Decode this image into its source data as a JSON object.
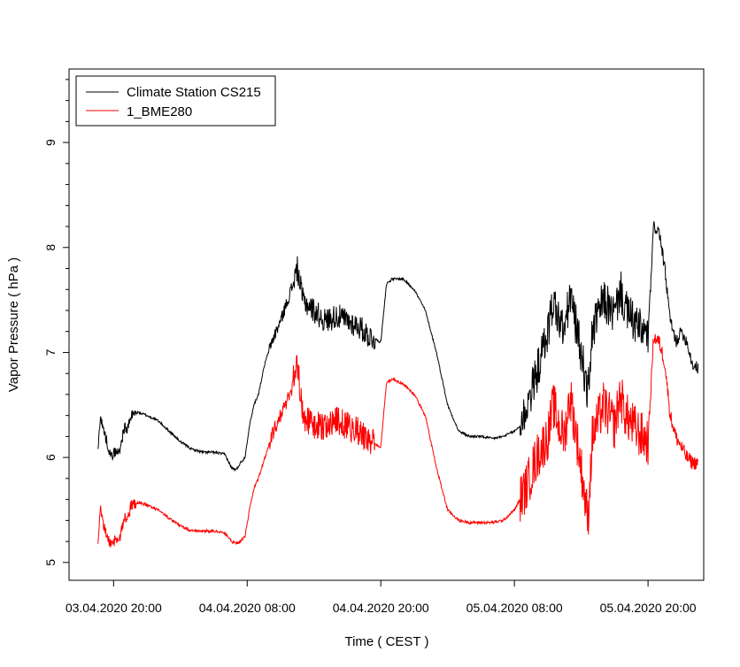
{
  "chart_data": {
    "type": "line",
    "xlabel": "Time ( CEST )",
    "ylabel": "Vapor Pressure ( hPa )",
    "x_ticks": [
      "03.04.2020 20:00",
      "04.04.2020 08:00",
      "04.04.2020 20:00",
      "05.04.2020 08:00",
      "05.04.2020 20:00"
    ],
    "x_tick_hours": [
      0,
      12,
      24,
      36,
      48
    ],
    "x_unit": "hours since 03.04.2020 20:00",
    "xlim": [
      -4,
      53
    ],
    "y_ticks": [
      "5",
      "6",
      "7",
      "8",
      "9"
    ],
    "y_tick_values": [
      5,
      6,
      7,
      8,
      9
    ],
    "ylim": [
      4.83,
      9.7
    ],
    "y_minor_step": 0.2,
    "legend_position": "top-left",
    "series": [
      {
        "name": "Climate Station CS215",
        "color": "#000000",
        "x": [
          -1.4,
          -1.2,
          -1.0,
          -0.6,
          -0.2,
          0.0,
          0.5,
          1.0,
          1.2,
          1.6,
          2.2,
          3.0,
          4.0,
          5.0,
          6.0,
          7.0,
          8.0,
          9.0,
          10.0,
          10.6,
          11.0,
          11.4,
          11.8,
          12.2,
          12.6,
          13.0,
          13.6,
          14.2,
          15.0,
          15.8,
          16.5,
          17.0,
          17.5,
          18.0,
          18.5,
          19.0,
          20.0,
          21.0,
          22.0,
          23.0,
          24.0,
          24.5,
          25.0,
          26.0,
          27.0,
          28.0,
          29.0,
          30.0,
          31.0,
          32.0,
          33.0,
          34.0,
          35.0,
          36.0,
          36.5,
          37.0,
          38.0,
          39.0,
          39.5,
          40.0,
          40.5,
          41.0,
          42.0,
          42.6,
          43.0,
          44.0,
          45.0,
          45.5,
          46.0,
          47.0,
          48.0,
          48.5,
          49.0,
          49.5,
          50.0,
          50.5,
          51.0,
          51.5,
          52.0,
          52.5
        ],
        "y": [
          6.05,
          6.4,
          6.3,
          6.15,
          6.0,
          6.05,
          6.05,
          6.3,
          6.25,
          6.4,
          6.43,
          6.4,
          6.35,
          6.25,
          6.15,
          6.08,
          6.05,
          6.05,
          6.03,
          5.9,
          5.88,
          5.95,
          6.0,
          6.3,
          6.5,
          6.6,
          6.9,
          7.1,
          7.3,
          7.55,
          7.8,
          7.5,
          7.45,
          7.4,
          7.35,
          7.3,
          7.35,
          7.3,
          7.25,
          7.15,
          7.1,
          7.65,
          7.7,
          7.7,
          7.6,
          7.4,
          7.0,
          6.5,
          6.25,
          6.2,
          6.2,
          6.18,
          6.2,
          6.25,
          6.3,
          6.45,
          6.8,
          7.2,
          7.5,
          7.3,
          7.2,
          7.55,
          7.0,
          6.6,
          7.2,
          7.5,
          7.35,
          7.6,
          7.4,
          7.25,
          7.15,
          8.2,
          8.15,
          7.8,
          7.3,
          7.1,
          7.2,
          7.1,
          6.88,
          6.85
        ]
      },
      {
        "name": "1_BME280",
        "color": "#ff0000",
        "x": [
          -1.4,
          -1.2,
          -1.0,
          -0.6,
          -0.2,
          0.0,
          0.5,
          1.0,
          1.2,
          1.6,
          2.2,
          3.0,
          4.0,
          5.0,
          6.0,
          7.0,
          8.0,
          9.0,
          10.0,
          10.6,
          11.0,
          11.4,
          11.8,
          12.2,
          12.6,
          13.0,
          13.6,
          14.2,
          15.0,
          15.8,
          16.5,
          17.0,
          17.5,
          18.0,
          18.5,
          19.0,
          20.0,
          21.0,
          22.0,
          23.0,
          24.0,
          24.5,
          25.0,
          26.0,
          27.0,
          28.0,
          29.0,
          30.0,
          31.0,
          32.0,
          33.0,
          34.0,
          35.0,
          36.0,
          36.5,
          37.0,
          38.0,
          39.0,
          39.5,
          40.0,
          40.5,
          41.0,
          42.0,
          42.6,
          43.0,
          44.0,
          45.0,
          45.5,
          46.0,
          47.0,
          48.0,
          48.5,
          49.0,
          49.5,
          50.0,
          50.5,
          51.0,
          51.5,
          52.0,
          52.5
        ],
        "y": [
          5.15,
          5.55,
          5.4,
          5.25,
          5.15,
          5.2,
          5.2,
          5.45,
          5.4,
          5.55,
          5.57,
          5.55,
          5.5,
          5.42,
          5.35,
          5.3,
          5.3,
          5.3,
          5.28,
          5.2,
          5.18,
          5.2,
          5.25,
          5.5,
          5.7,
          5.8,
          6.0,
          6.2,
          6.4,
          6.6,
          6.9,
          6.4,
          6.35,
          6.3,
          6.3,
          6.3,
          6.35,
          6.3,
          6.25,
          6.15,
          6.1,
          6.7,
          6.75,
          6.7,
          6.6,
          6.4,
          5.9,
          5.5,
          5.4,
          5.38,
          5.38,
          5.38,
          5.4,
          5.5,
          5.6,
          5.7,
          6.0,
          6.2,
          6.5,
          6.3,
          6.2,
          6.6,
          5.9,
          5.4,
          6.2,
          6.5,
          6.3,
          6.6,
          6.4,
          6.25,
          6.15,
          7.15,
          7.1,
          6.9,
          6.4,
          6.2,
          6.1,
          6.0,
          5.95,
          5.95
        ]
      }
    ]
  }
}
